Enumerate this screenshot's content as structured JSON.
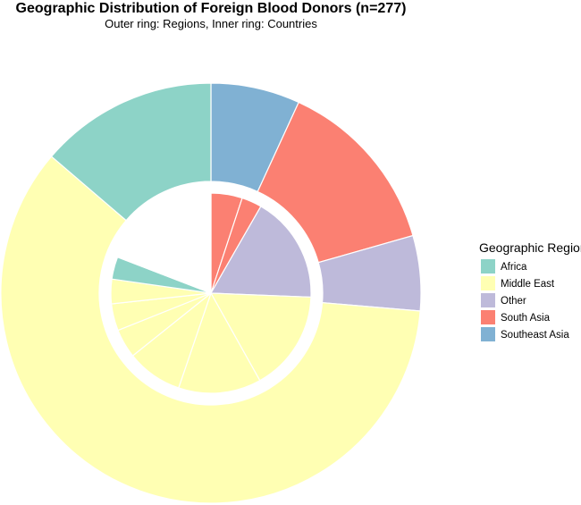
{
  "chart_data": {
    "type": "pie",
    "variant": "nested-donut",
    "title": "Geographic Distribution of Foreign Blood Donors (n=277)",
    "subtitle": "Outer ring: Regions, Inner ring: Countries",
    "legend": {
      "title": "Geographic Region",
      "placement": "right",
      "entries": [
        {
          "label": "Africa",
          "color": "#8DD3C7"
        },
        {
          "label": "Middle East",
          "color": "#FFFFB3"
        },
        {
          "label": "Other",
          "color": "#BEBADA"
        },
        {
          "label": "South Asia",
          "color": "#FB8072"
        },
        {
          "label": "Southeast Asia",
          "color": "#80B1D3"
        }
      ]
    },
    "outer_ring": [
      {
        "region": "Southeast Asia",
        "value": 19
      },
      {
        "region": "South Asia",
        "value": 38
      },
      {
        "region": "Other",
        "value": 16
      },
      {
        "region": "Middle East",
        "value": 166
      },
      {
        "region": "Africa",
        "value": 38
      }
    ],
    "inner_ring": [
      {
        "region": "South Asia",
        "value": 14
      },
      {
        "region": "South Asia",
        "value": 9
      },
      {
        "region": "Other",
        "value": 48
      },
      {
        "region": "Middle East",
        "value": 45
      },
      {
        "region": "Middle East",
        "value": 37
      },
      {
        "region": "Middle East",
        "value": 25
      },
      {
        "region": "Middle East",
        "value": 13
      },
      {
        "region": "Middle East",
        "value": 12
      },
      {
        "region": "Middle East",
        "value": 11
      },
      {
        "region": "Africa",
        "value": 10
      },
      {
        "region": null,
        "value": 53
      }
    ]
  }
}
